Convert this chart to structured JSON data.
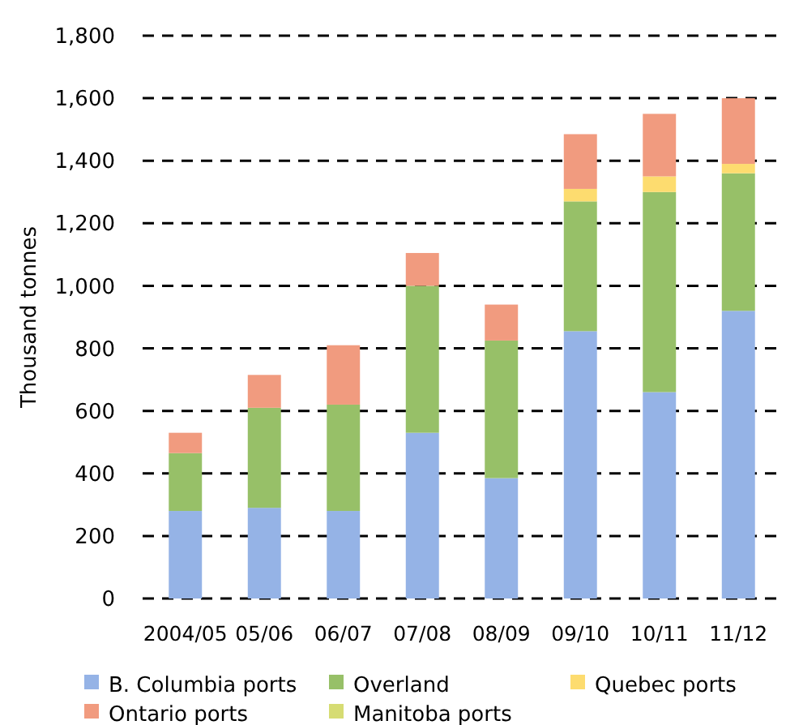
{
  "chart_data": {
    "type": "bar",
    "stacked": true,
    "ylabel": "Thousand tonnes",
    "categories": [
      "2004/05",
      "05/06",
      "06/07",
      "07/08",
      "08/09",
      "09/10",
      "10/11",
      "11/12"
    ],
    "series": [
      {
        "name": "B. Columbia ports",
        "color": "#95b3e6",
        "values": [
          280,
          290,
          280,
          530,
          385,
          855,
          660,
          920
        ]
      },
      {
        "name": "Overland",
        "color": "#97c068",
        "values": [
          185,
          320,
          340,
          470,
          440,
          415,
          640,
          440
        ]
      },
      {
        "name": "Quebec ports",
        "color": "#fddc6f",
        "values": [
          0,
          0,
          0,
          0,
          0,
          40,
          50,
          30
        ]
      },
      {
        "name": "Ontario ports",
        "color": "#f19b7f",
        "values": [
          65,
          105,
          190,
          105,
          115,
          175,
          200,
          210
        ]
      },
      {
        "name": "Manitoba ports",
        "color": "#d6dc73",
        "values": [
          0,
          0,
          0,
          0,
          0,
          0,
          0,
          0
        ]
      }
    ],
    "ylim": [
      0,
      1800
    ],
    "yticks": [
      0,
      {
        "value": 200,
        "label": "200"
      },
      {
        "value": 400,
        "label": "400"
      },
      {
        "value": 600,
        "label": "600"
      },
      {
        "value": 800,
        "label": "800"
      },
      {
        "value": 1000,
        "label": "1,000"
      },
      {
        "value": 1200,
        "label": "1,200"
      },
      {
        "value": 1400,
        "label": "1,400"
      },
      {
        "value": 1600,
        "label": "1,600"
      },
      {
        "value": 1800,
        "label": "1,800"
      }
    ],
    "grid": "y",
    "legend": "bottom"
  }
}
